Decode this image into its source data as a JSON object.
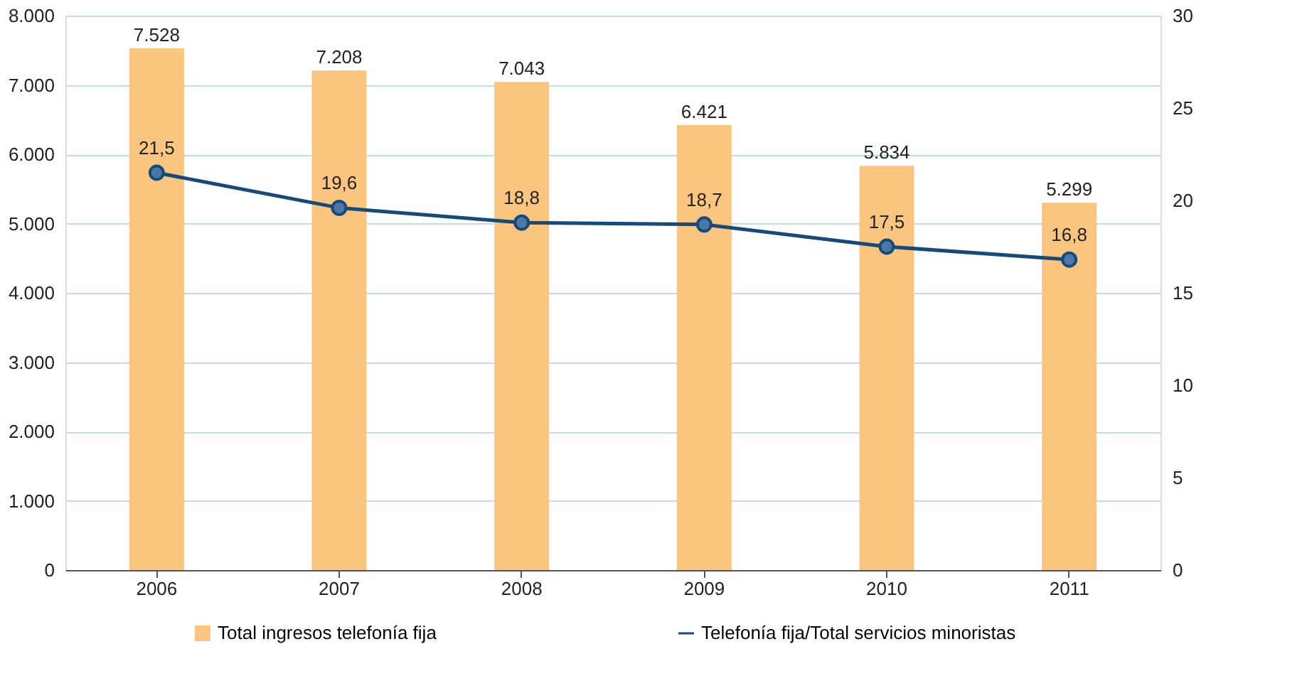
{
  "chart_data": {
    "type": "bar",
    "categories": [
      "2006",
      "2007",
      "2008",
      "2009",
      "2010",
      "2011"
    ],
    "series": [
      {
        "name": "Total ingresos telefonía fija",
        "color": "#fac57f",
        "values": [
          7528,
          7208,
          7043,
          6421,
          5834,
          5299
        ],
        "value_labels": [
          "7.528",
          "7.208",
          "7.043",
          "6.421",
          "5.834",
          "5.299"
        ]
      },
      {
        "name": "Telefonía fija/Total servicios minoristas",
        "type": "line",
        "axis": "y2",
        "color": "#164a7a",
        "marker": "circle",
        "values": [
          21.5,
          19.6,
          18.8,
          18.7,
          17.5,
          16.8
        ],
        "value_labels": [
          "21,5",
          "19,6",
          "18,8",
          "18,7",
          "17,5",
          "16,8"
        ]
      }
    ],
    "ylim": [
      0,
      8000
    ],
    "yticks": [
      {
        "value": 0,
        "label": "0"
      },
      {
        "value": 1000,
        "label": "1.000"
      },
      {
        "value": 2000,
        "label": "2.000"
      },
      {
        "value": 3000,
        "label": "3.000"
      },
      {
        "value": 4000,
        "label": "4.000"
      },
      {
        "value": 5000,
        "label": "5.000"
      },
      {
        "value": 6000,
        "label": "6.000"
      },
      {
        "value": 7000,
        "label": "7.000"
      },
      {
        "value": 8000,
        "label": "8.000"
      }
    ],
    "y2lim": [
      0,
      30
    ],
    "y2ticks": [
      0,
      5,
      10,
      15,
      20,
      25,
      30
    ],
    "grid": "y",
    "legend": "bottom"
  }
}
